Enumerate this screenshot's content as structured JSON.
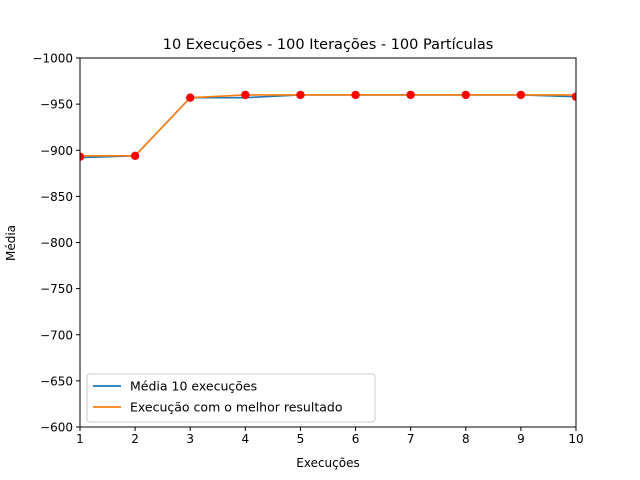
{
  "chart_data": {
    "type": "line",
    "title": "10 Execuções - 100 Iterações - 100 Partículas",
    "xlabel": "Execuções",
    "ylabel": "Média",
    "x": [
      1,
      2,
      3,
      4,
      5,
      6,
      7,
      8,
      9,
      10
    ],
    "xlim": [
      1,
      10
    ],
    "ylim": [
      -600,
      -1000
    ],
    "y_inverted": true,
    "xticks": [
      "1",
      "2",
      "3",
      "4",
      "5",
      "6",
      "7",
      "8",
      "9",
      "10"
    ],
    "yticks": [
      "−1000",
      "−950",
      "−900",
      "−850",
      "−800",
      "−750",
      "−700",
      "−650",
      "−600"
    ],
    "ytick_values": [
      -1000,
      -950,
      -900,
      -850,
      -800,
      -750,
      -700,
      -650,
      -600
    ],
    "grid": false,
    "legend_position": "lower-left",
    "series": [
      {
        "name": "Média 10 execuções",
        "color": "#1f77b4",
        "values": [
          -892,
          -894,
          -957,
          -957,
          -960,
          -960,
          -960,
          -960,
          -960,
          -958
        ]
      },
      {
        "name": "Execução com o melhor resultado",
        "color": "#ff7f0e",
        "values": [
          -894,
          -894,
          -957,
          -960,
          -960,
          -960,
          -960,
          -960,
          -960,
          -960
        ]
      }
    ],
    "markers": {
      "color": "#ff0000",
      "values": [
        -893,
        -894,
        -957,
        -960,
        -960,
        -960,
        -960,
        -960,
        -960,
        -958
      ]
    }
  }
}
